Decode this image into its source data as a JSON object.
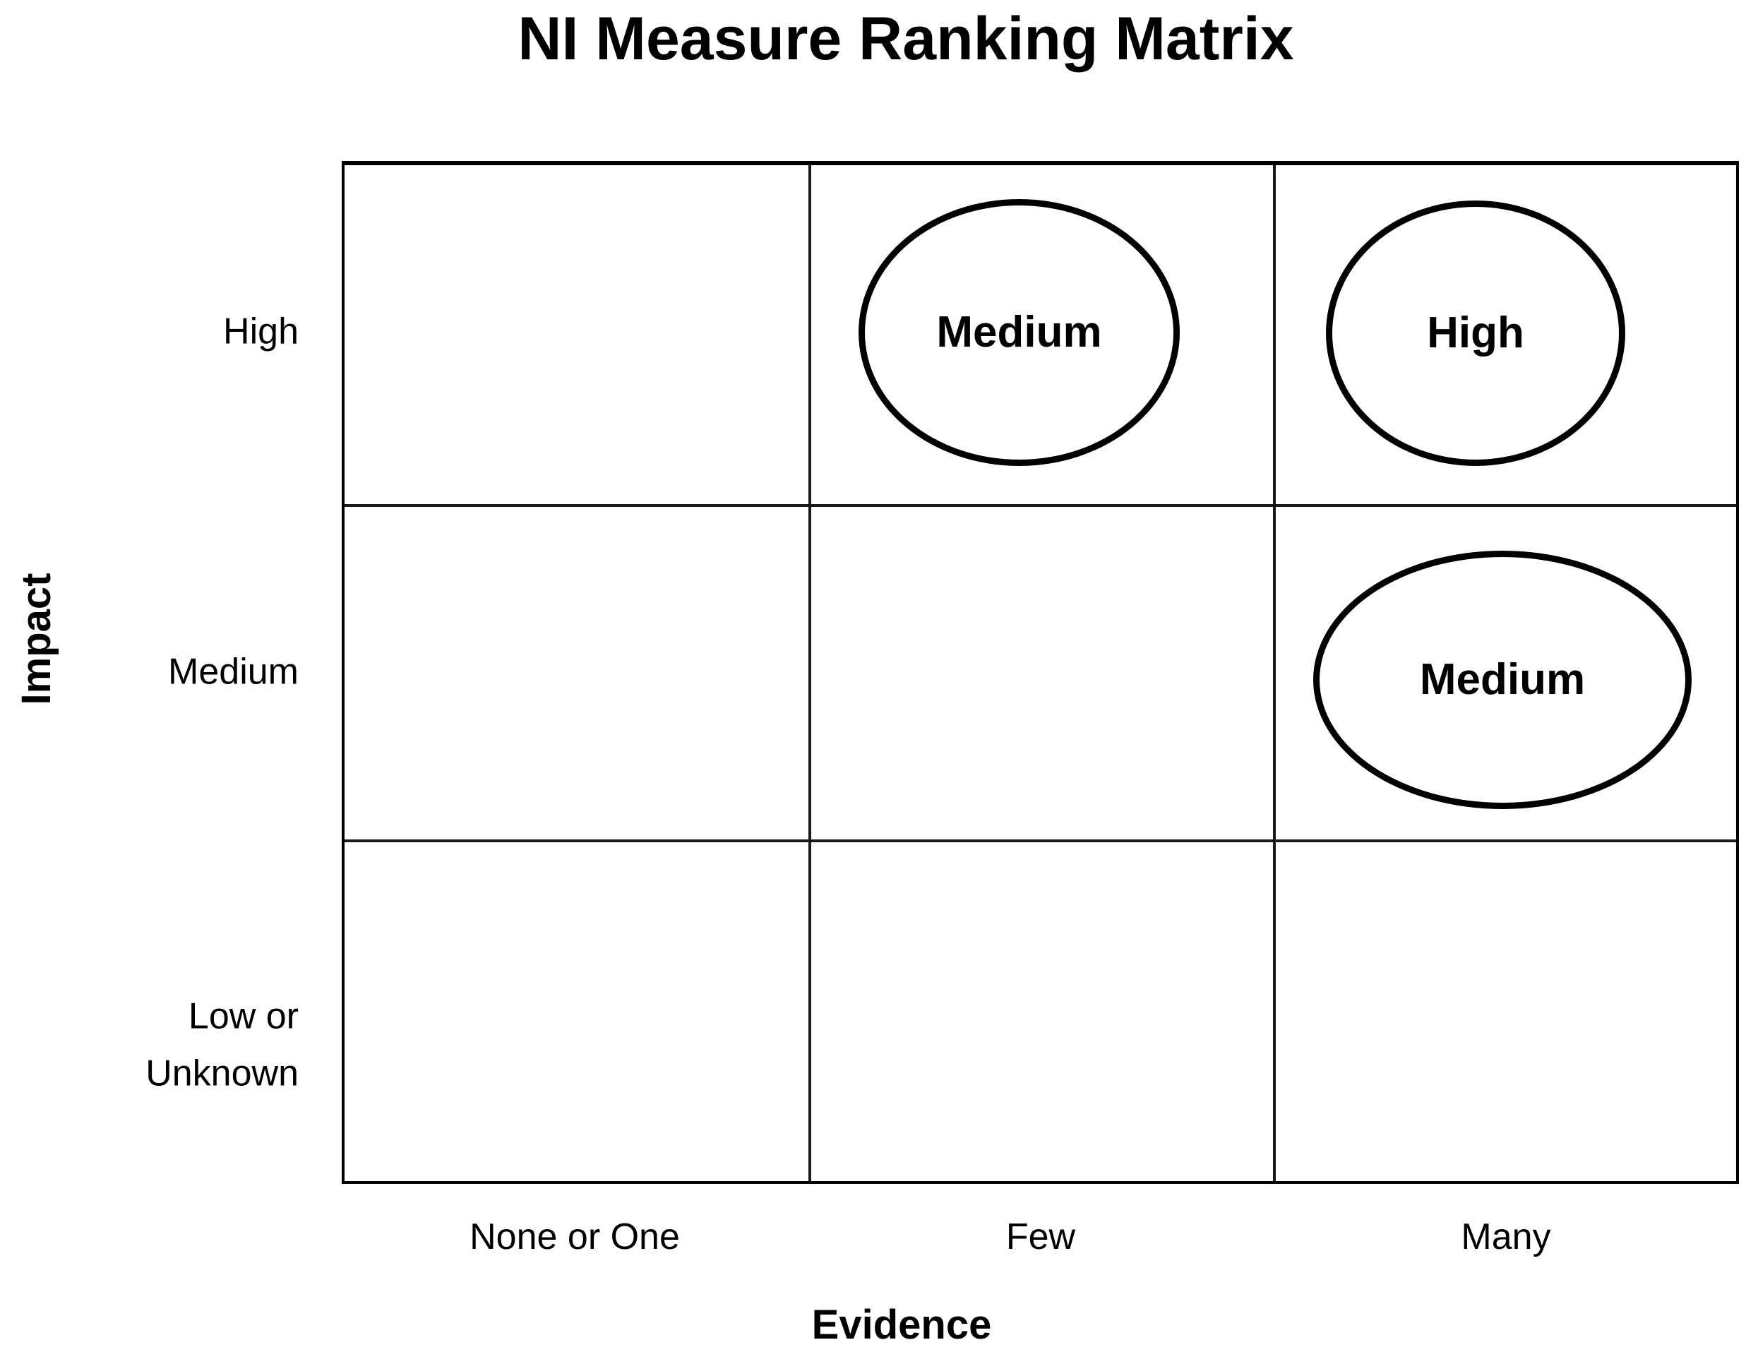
{
  "title": "NI Measure Ranking Matrix",
  "axes": {
    "y": {
      "label": "Impact",
      "categories": [
        "High",
        "Medium",
        "Low or Unknown"
      ]
    },
    "x": {
      "label": "Evidence",
      "categories": [
        "None or One",
        "Few",
        "Many"
      ]
    }
  },
  "matrix": {
    "type": "ranking-matrix",
    "rows": [
      "High",
      "Medium",
      "Low or Unknown"
    ],
    "cols": [
      "None or One",
      "Few",
      "Many"
    ],
    "placements": [
      {
        "impact": "High",
        "evidence": "Few",
        "rank": "Medium"
      },
      {
        "impact": "High",
        "evidence": "Many",
        "rank": "High"
      },
      {
        "impact": "Medium",
        "evidence": "Many",
        "rank": "Medium"
      }
    ]
  },
  "colors": {
    "ink": "#000000",
    "background": "#ffffff"
  }
}
